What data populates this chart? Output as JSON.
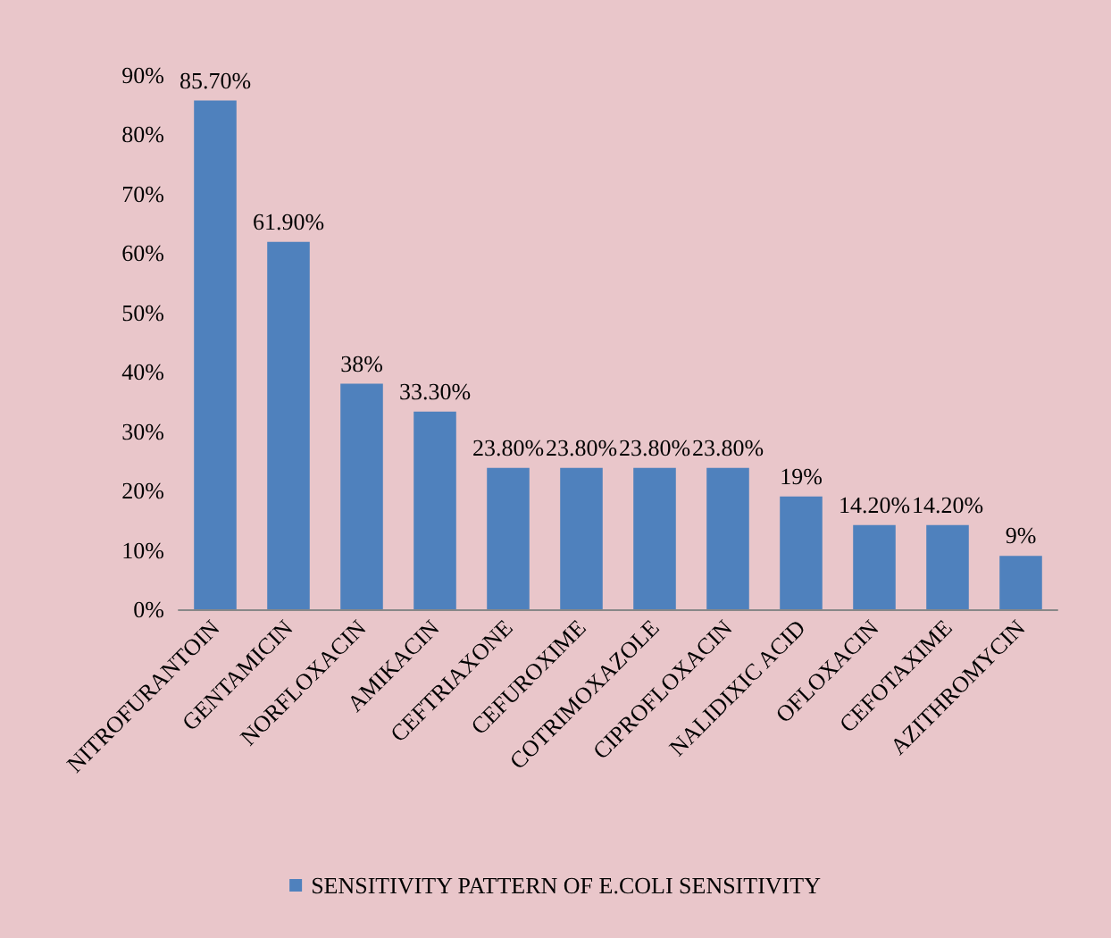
{
  "chart_data": {
    "type": "bar",
    "categories": [
      "NITROFURANTOIN",
      "GENTAMICIN",
      "NORFLOXACIN",
      "AMIKACIN",
      "CEFTRIAXONE",
      "CEFUROXIME",
      "COTRIMOXAZOLE",
      "CIPROFLOXACIN",
      "NALIDIXIC ACID",
      "OFLOXACIN",
      "CEFOTAXIME",
      "AZITHROMYCIN"
    ],
    "series": [
      {
        "name": "SENSITIVITY PATTERN OF E.COLI SENSITIVITY",
        "color": "#4f81bd",
        "values": [
          85.7,
          61.9,
          38,
          33.3,
          23.8,
          23.8,
          23.8,
          23.8,
          19,
          14.2,
          14.2,
          9
        ],
        "value_labels": [
          "85.70%",
          "61.90%",
          "38%",
          "33.30%",
          "23.80%",
          "23.80%",
          "23.80%",
          "23.80%",
          "19%",
          "14.20%",
          "14.20%",
          "9%"
        ]
      }
    ],
    "ylim": [
      0,
      90
    ],
    "yticks": [
      {
        "value": 0,
        "label": "0%"
      },
      {
        "value": 10,
        "label": "10%"
      },
      {
        "value": 20,
        "label": "20%"
      },
      {
        "value": 30,
        "label": "30%"
      },
      {
        "value": 40,
        "label": "40%"
      },
      {
        "value": 50,
        "label": "50%"
      },
      {
        "value": 60,
        "label": "60%"
      },
      {
        "value": 70,
        "label": "70%"
      },
      {
        "value": 80,
        "label": "80%"
      },
      {
        "value": 90,
        "label": "90%"
      }
    ],
    "grid": false,
    "legend": "bottom"
  }
}
